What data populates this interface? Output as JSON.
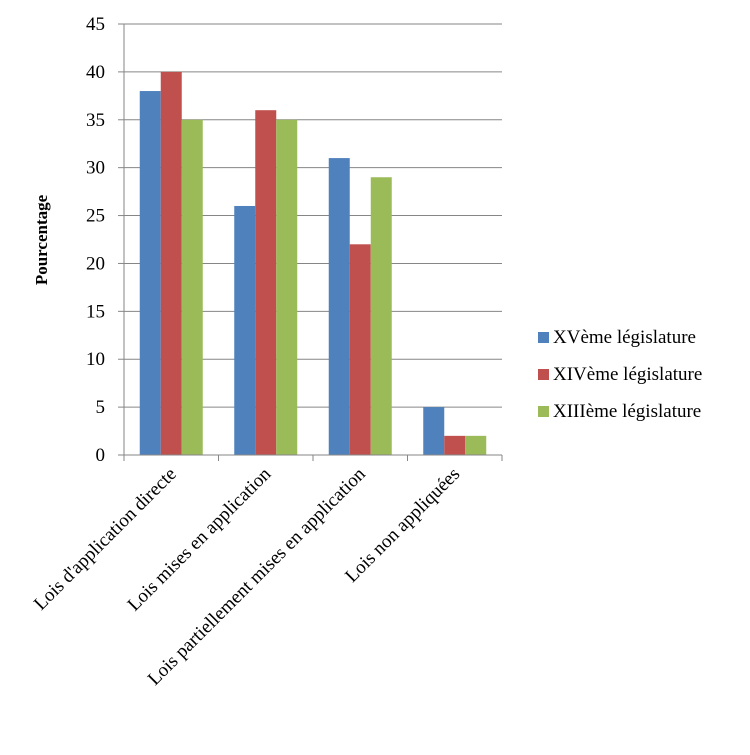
{
  "chart_data": {
    "type": "bar",
    "title": "",
    "xlabel": "",
    "ylabel": "Pourcentage",
    "ylim": [
      0,
      45
    ],
    "yticks": [
      0,
      5,
      10,
      15,
      20,
      25,
      30,
      35,
      40,
      45
    ],
    "grid": true,
    "legend_position": "right",
    "categories": [
      "Lois d'application directe",
      "Lois mises en application",
      "Lois partiellement mises en application",
      "Lois non appliquées"
    ],
    "series": [
      {
        "name": "XVème législature",
        "color": "#4F81BD",
        "values": [
          38,
          26,
          31,
          5
        ]
      },
      {
        "name": "XIVème législature",
        "color": "#C0504D",
        "values": [
          40,
          36,
          22,
          2
        ]
      },
      {
        "name": "XIIIème législature",
        "color": "#9BBB59",
        "values": [
          35,
          35,
          29,
          2
        ]
      }
    ]
  }
}
